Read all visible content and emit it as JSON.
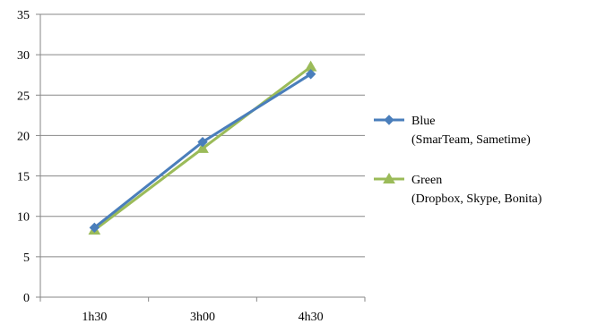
{
  "chart_data": {
    "type": "line",
    "categories": [
      "1h30",
      "3h00",
      "4h30"
    ],
    "ylim": [
      0,
      35
    ],
    "yticks": [
      0,
      5,
      10,
      15,
      20,
      25,
      30,
      35
    ],
    "grid": true,
    "legend_position": "right",
    "series": [
      {
        "name": "Blue",
        "legend_sublabel": "(SmarTeam, Sametime)",
        "values": [
          8.6,
          19.2,
          27.6
        ],
        "color": "#4a7ebb",
        "marker": "diamond"
      },
      {
        "name": "Green",
        "legend_sublabel": "(Dropbox, Skype, Bonita)",
        "values": [
          8.3,
          18.4,
          28.5
        ],
        "color": "#9bbb59",
        "marker": "triangle"
      }
    ]
  }
}
